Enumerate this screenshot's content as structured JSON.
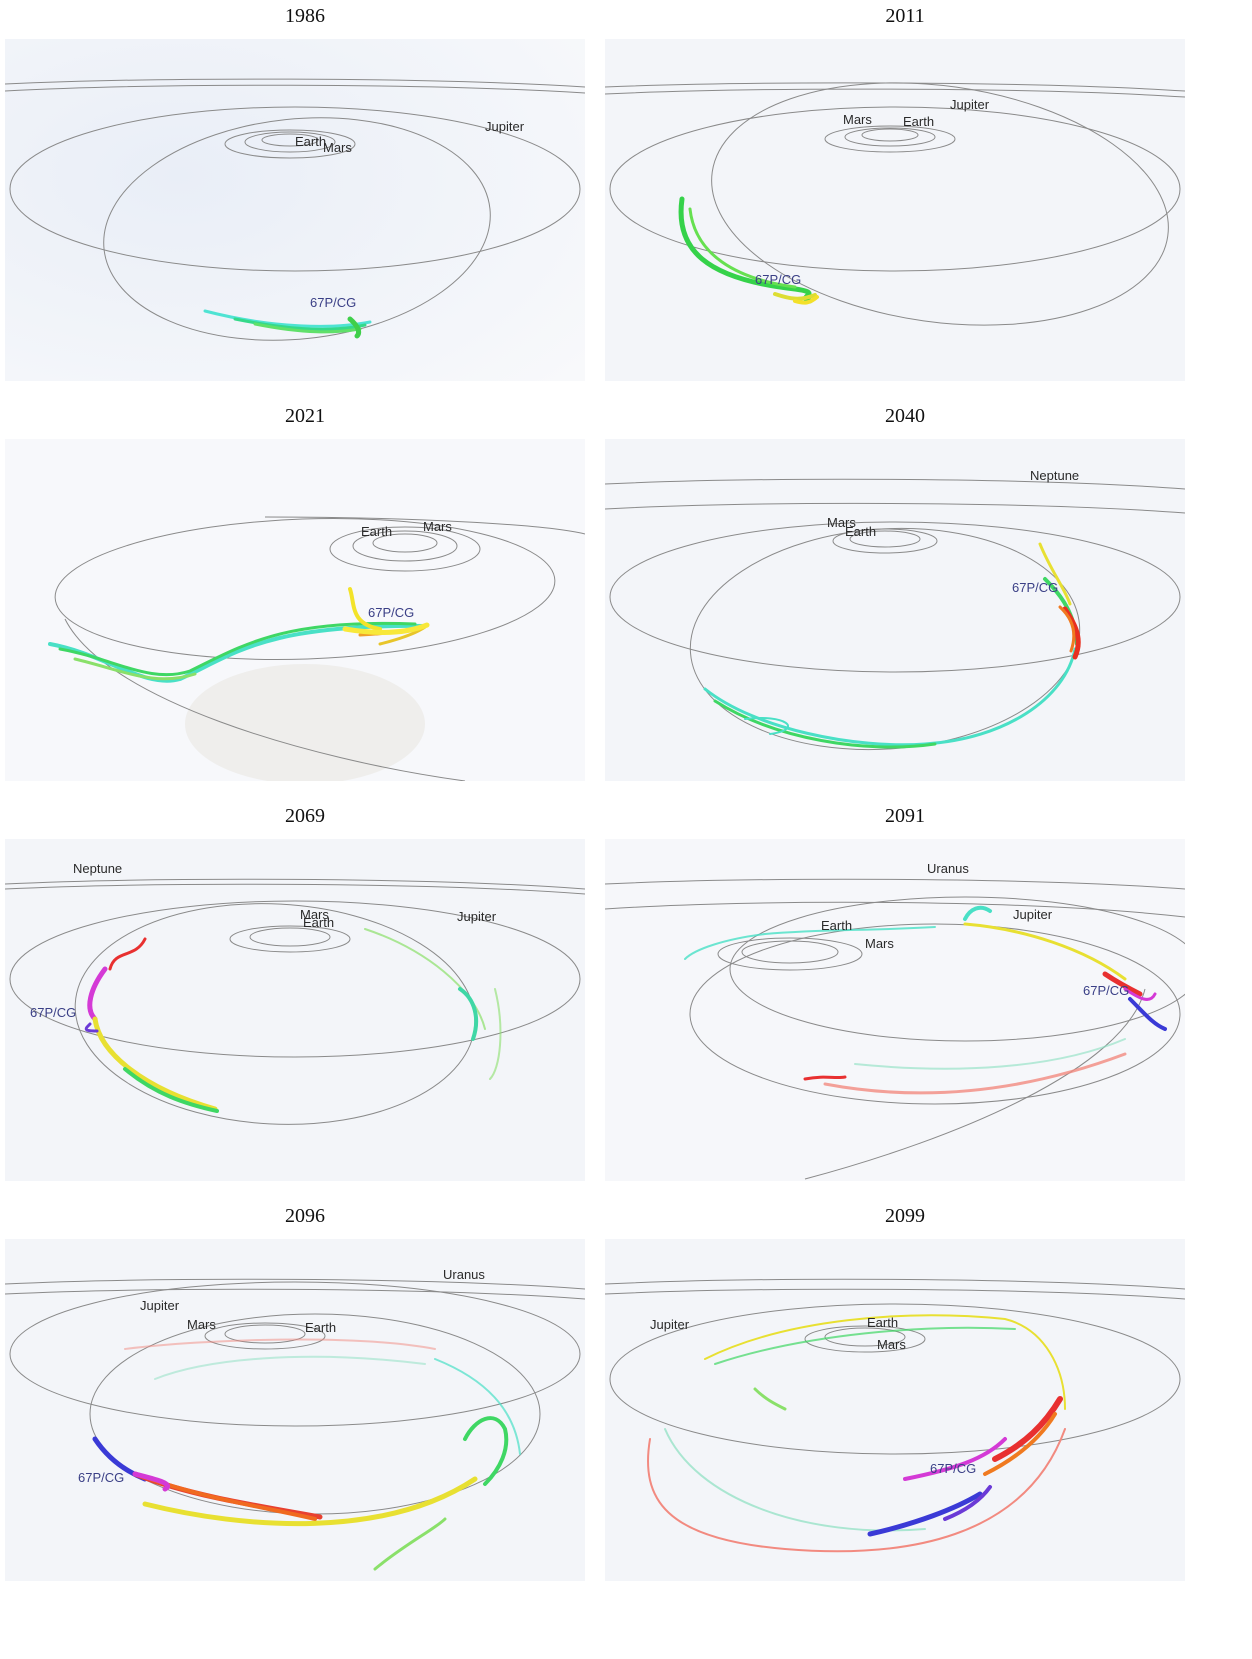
{
  "panels": [
    {
      "year": "1986",
      "labels": [
        "Earth",
        "Mars",
        "Jupiter",
        "67P/CG"
      ]
    },
    {
      "year": "2011",
      "labels": [
        "Jupiter",
        "Mars",
        "Earth",
        "67P/CG"
      ]
    },
    {
      "year": "2021",
      "labels": [
        "Earth",
        "Mars",
        "67P/CG"
      ]
    },
    {
      "year": "2040",
      "labels": [
        "Neptune",
        "Mars",
        "Earth",
        "67P/CG"
      ]
    },
    {
      "year": "2069",
      "labels": [
        "Neptune",
        "Mars",
        "Earth",
        "Jupiter",
        "67P/CG"
      ]
    },
    {
      "year": "2091",
      "labels": [
        "Uranus",
        "Jupiter",
        "Earth",
        "Mars",
        "67P/CG"
      ]
    },
    {
      "year": "2096",
      "labels": [
        "Uranus",
        "Jupiter",
        "Mars",
        "Earth",
        "67P/CG"
      ]
    },
    {
      "year": "2099",
      "labels": [
        "Jupiter",
        "Earth",
        "Mars",
        "67P/CG"
      ]
    }
  ],
  "colors": {
    "orbit": "#8a8a8a",
    "comet_label": "#3a3f86",
    "background_tint": "#eef1f7"
  }
}
